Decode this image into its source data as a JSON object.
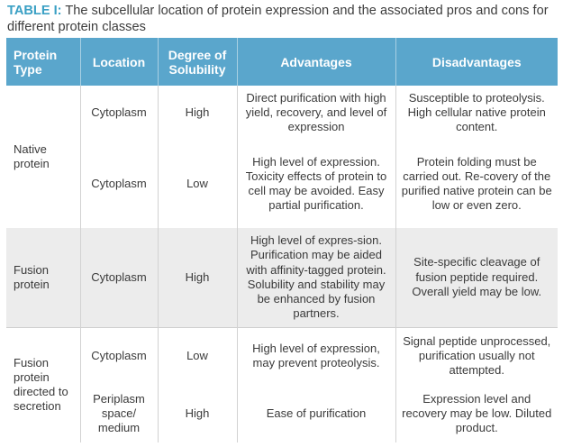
{
  "caption": {
    "label": "TABLE I:",
    "text": " The subcellular location of protein expression and the associated pros and cons for different protein classes"
  },
  "headers": [
    "Protein Type",
    "Location",
    "Degree of Solubility",
    "Advantages",
    "Disadvantages"
  ],
  "rows": [
    {
      "protein_type": "Native protein",
      "location": "Cytoplasm",
      "solubility": "High",
      "advantages": "Direct purification with high yield, recovery, and level of expression",
      "disadvantages": "Susceptible to proteolysis. High cellular native protein content."
    },
    {
      "protein_type": "",
      "location": "Cytoplasm",
      "solubility": "Low",
      "advantages": "High level of expression. Toxicity effects of protein to cell may be avoided. Easy partial purification.",
      "disadvantages": "Protein folding must be carried out. Re-covery of the purified native protein can be low or even zero."
    },
    {
      "protein_type": "Fusion protein",
      "location": "Cytoplasm",
      "solubility": "High",
      "advantages": "High level of expres-sion. Purification may be aided with affinity-tagged protein. Solubility and stability may be enhanced by fusion partners.",
      "disadvantages": "Site-specific cleavage of fusion peptide required. Overall yield may be low."
    },
    {
      "protein_type": "Fusion protein directed to secretion",
      "location": "Cytoplasm",
      "solubility": "Low",
      "advantages": "High level of expression, may prevent proteolysis.",
      "disadvantages": "Signal peptide unprocessed, purification usually not attempted."
    },
    {
      "protein_type": "",
      "location": "Periplasm space/ medium",
      "solubility": "High",
      "advantages": "Ease of purification",
      "disadvantages": "Expression level and recovery may be low. Diluted product."
    }
  ]
}
